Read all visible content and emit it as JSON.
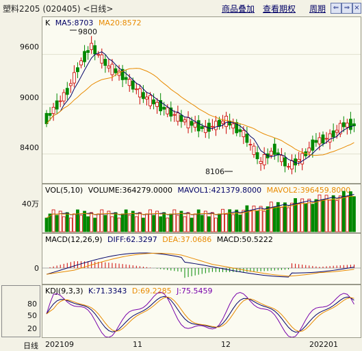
{
  "title": "塑料2205 (020405) <日线>",
  "toolbar": {
    "overlay": "商品叠加",
    "view_options": "查看期权",
    "period": "周期"
  },
  "icons": [
    "arrow-left-icon",
    "arrow-right-icon",
    "close-icon"
  ],
  "main_panel": {
    "label": "K",
    "ma5": "MA5:8703",
    "ma20": "MA20:8572",
    "y_ticks": [
      "9600",
      "9000",
      "8400"
    ],
    "high_marker": "9800",
    "low_marker": "8106"
  },
  "volume_panel": {
    "label": "VOL(5,10)",
    "volume": "VOLUME:364279.0000",
    "mavol1": "MAVOL1:421379.8000",
    "mavol2": "MAVOL2:396459.8000",
    "y_tick": "40万"
  },
  "macd_panel": {
    "label": "MACD(12,26,9)",
    "diff": "DIFF:62.3297",
    "dea": "DEA:37.0686",
    "macd": "MACD:50.5222",
    "y_tick": "0"
  },
  "kdj_panel": {
    "label": "KDJ(9,3,3)",
    "k": "K:71.3343",
    "d": "D:69.2285",
    "j": "J:75.5459",
    "y_ticks": [
      "80",
      "50",
      "20"
    ]
  },
  "x_axis": {
    "period_label": "日线",
    "ticks": [
      "202109",
      "11",
      "12",
      "202201"
    ]
  },
  "colors": {
    "up": "#cc0000",
    "down": "#008800",
    "ma5": "#000066",
    "ma20": "#e88a00",
    "k_line": "#000066",
    "d_line": "#e88a00",
    "j_line": "#7700aa"
  }
}
